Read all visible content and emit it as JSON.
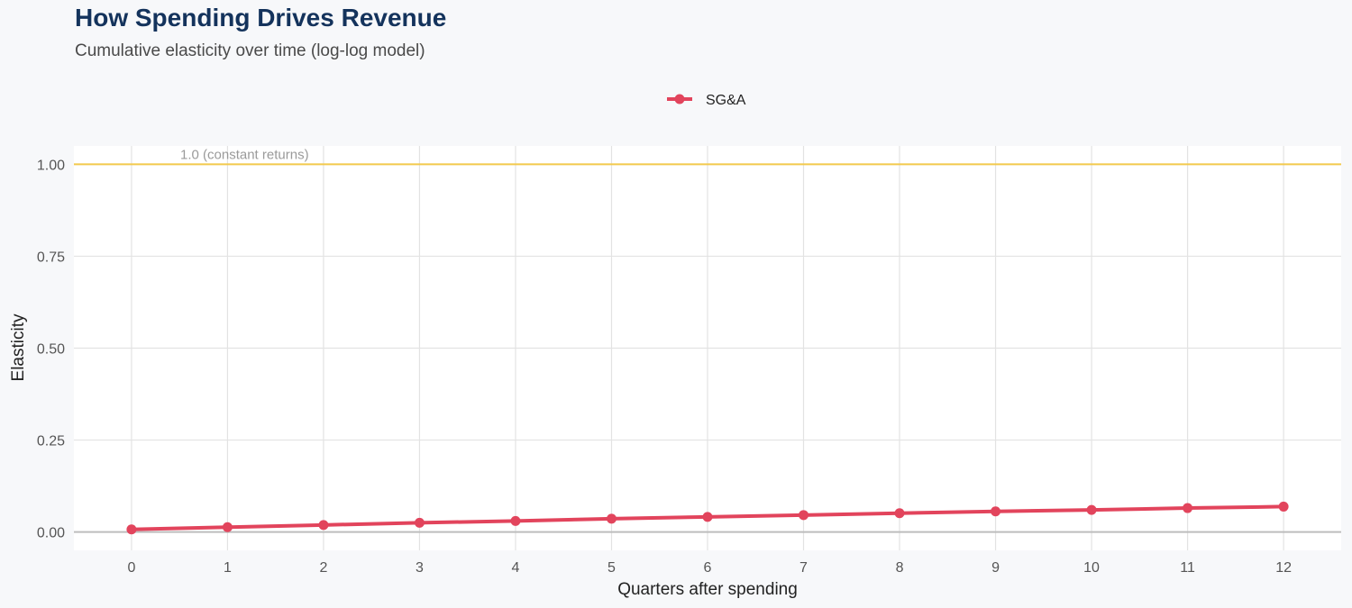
{
  "title": "How Spending Drives Revenue",
  "subtitle": "Cumulative elasticity over time (log-log model)",
  "chart_data": {
    "type": "line",
    "title": "How Spending Drives Revenue",
    "subtitle": "Cumulative elasticity over time (log-log model)",
    "xlabel": "Quarters after spending",
    "ylabel": "Elasticity",
    "x": [
      0,
      1,
      2,
      3,
      4,
      5,
      6,
      7,
      8,
      9,
      10,
      11,
      12
    ],
    "x_tick_labels": [
      "0",
      "1",
      "2",
      "3",
      "4",
      "5",
      "6",
      "7",
      "8",
      "9",
      "10",
      "11",
      "12"
    ],
    "y_ticks": [
      0,
      0.25,
      0.5,
      0.75,
      1.0
    ],
    "y_tick_labels": [
      "0.00",
      "0.25",
      "0.50",
      "0.75",
      "1.00"
    ],
    "xlim": [
      -0.6,
      12.6
    ],
    "ylim": [
      -0.05,
      1.05
    ],
    "grid": true,
    "legend_position": "top-center",
    "series": [
      {
        "name": "SG&A",
        "color": "#e2445c",
        "values": [
          0.007,
          0.013,
          0.019,
          0.025,
          0.03,
          0.036,
          0.041,
          0.046,
          0.051,
          0.056,
          0.06,
          0.065,
          0.069
        ]
      }
    ],
    "reference_lines": [
      {
        "y": 1.0,
        "label": "1.0 (constant returns)",
        "color": "#f2c94c"
      },
      {
        "y": 0.0,
        "color": "#bdbdbd"
      }
    ]
  }
}
